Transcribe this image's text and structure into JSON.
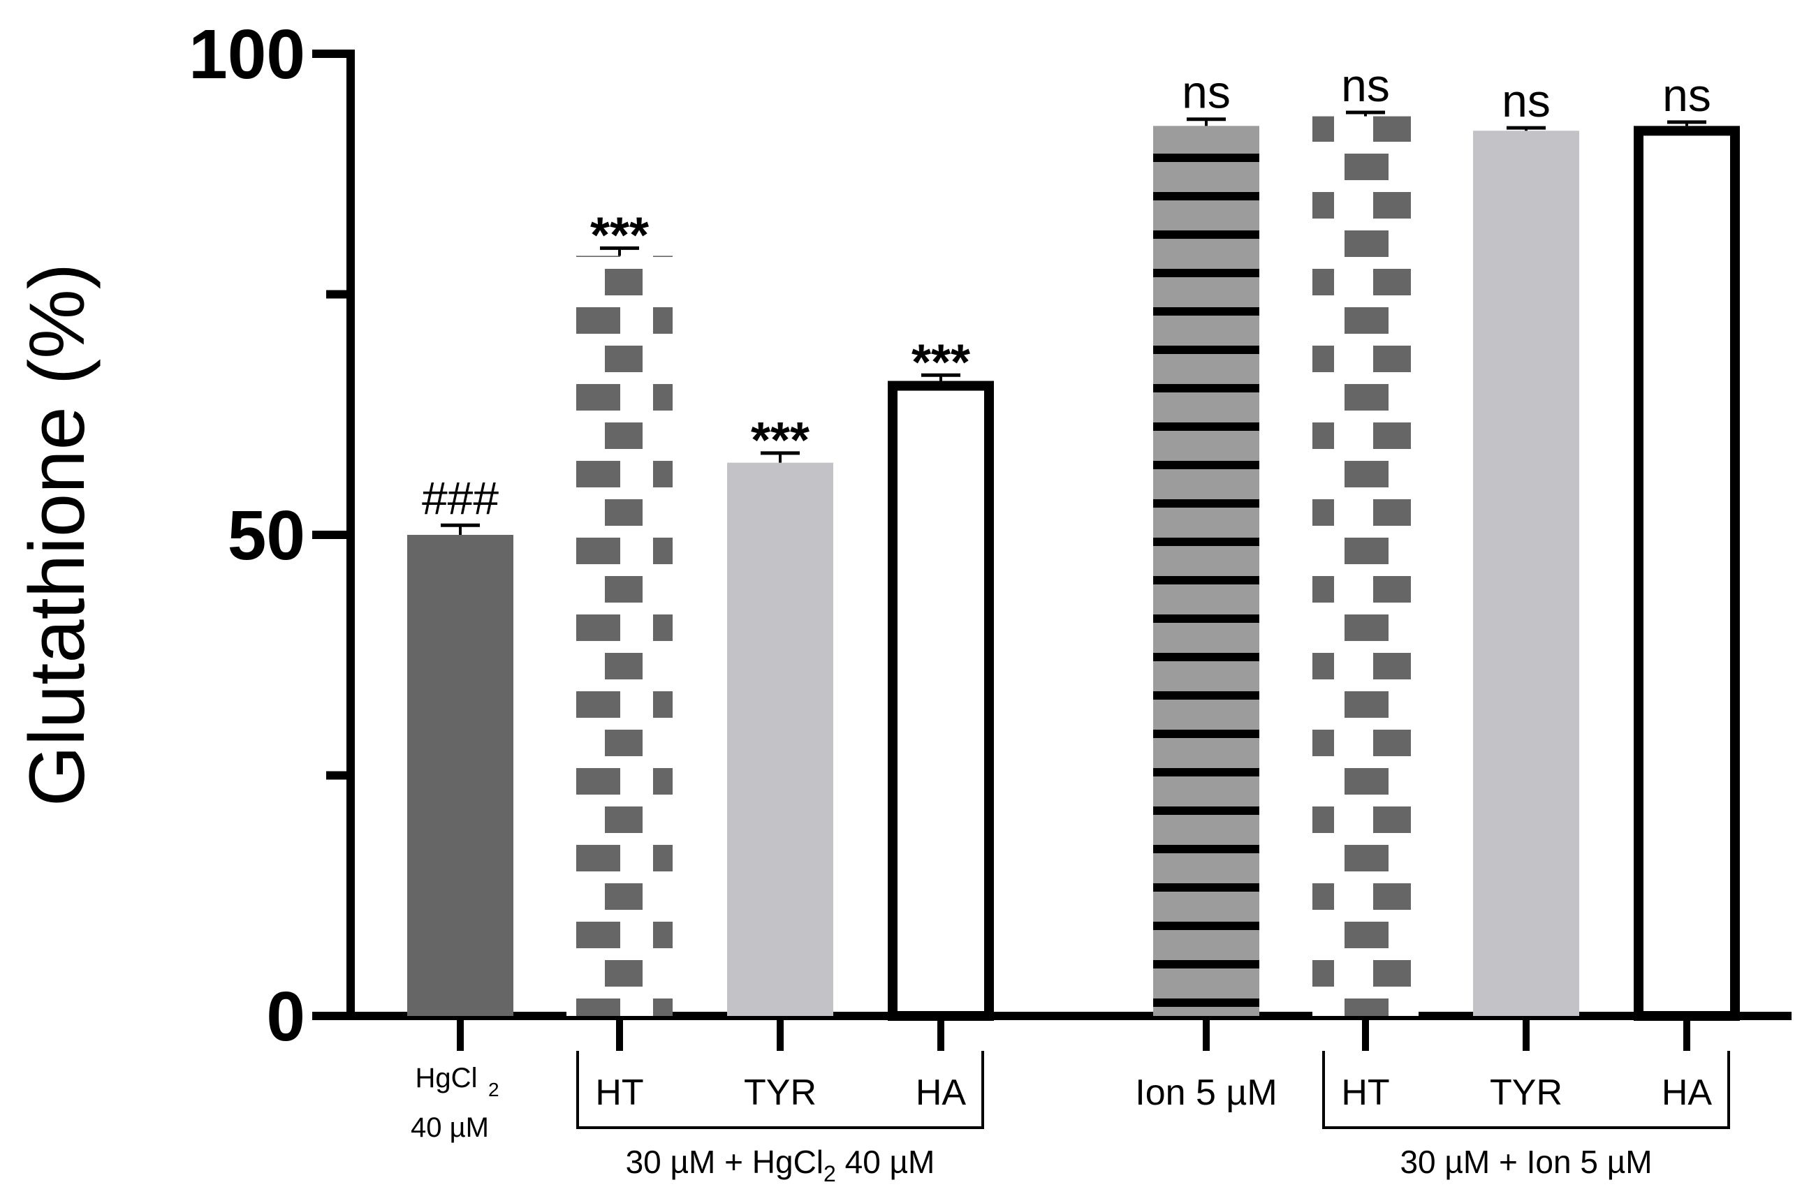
{
  "chart_data": {
    "type": "bar",
    "ylabel": "Glutathione (%)",
    "xlabel": "",
    "ylim": [
      0,
      100
    ],
    "yticks": [
      0,
      25,
      50,
      75,
      100
    ],
    "ytick_labels": [
      "0",
      "",
      "50",
      "",
      "100"
    ],
    "categories": [
      {
        "label": "HgCl2 40 µM",
        "label_line1": "HgCl",
        "label_sub": "2",
        "label_line2": "40 µM",
        "value": 50,
        "error": 1.0,
        "annotation": "###",
        "pattern": "solid-dark"
      },
      {
        "label": "HT",
        "value": 79,
        "error": 0.8,
        "annotation": "***",
        "pattern": "brick"
      },
      {
        "label": "TYR",
        "value": 57.5,
        "error": 1.0,
        "annotation": "***",
        "pattern": "solid-light"
      },
      {
        "label": "HA",
        "value": 66,
        "error": 0.6,
        "annotation": "***",
        "pattern": "open"
      },
      {
        "label": "Ion 5 µM",
        "value": 92.5,
        "error": 0.7,
        "annotation": "ns",
        "pattern": "stripe"
      },
      {
        "label": "HT",
        "value": 93.5,
        "error": 0.4,
        "annotation": "ns",
        "pattern": "brick"
      },
      {
        "label": "TYR",
        "value": 92,
        "error": 0.3,
        "annotation": "ns",
        "pattern": "solid-light"
      },
      {
        "label": "HA",
        "value": 92.5,
        "error": 0.4,
        "annotation": "ns",
        "pattern": "open"
      }
    ],
    "groups": [
      {
        "label": "30 µM + HgCl2 40 µM",
        "label_pre": "30 µM + HgCl",
        "label_sub": "2",
        "label_post": " 40 µM",
        "spans": [
          1,
          3
        ]
      },
      {
        "label": "30 µM + Ion 5 µM",
        "label_pre": "30 µM + Ion 5 µM",
        "label_sub": "",
        "label_post": "",
        "spans": [
          5,
          7
        ]
      }
    ],
    "colors": {
      "dark": "#666666",
      "light": "#c3c2c6",
      "stripe_bg": "#9c9c9c",
      "line": "#000000"
    }
  }
}
